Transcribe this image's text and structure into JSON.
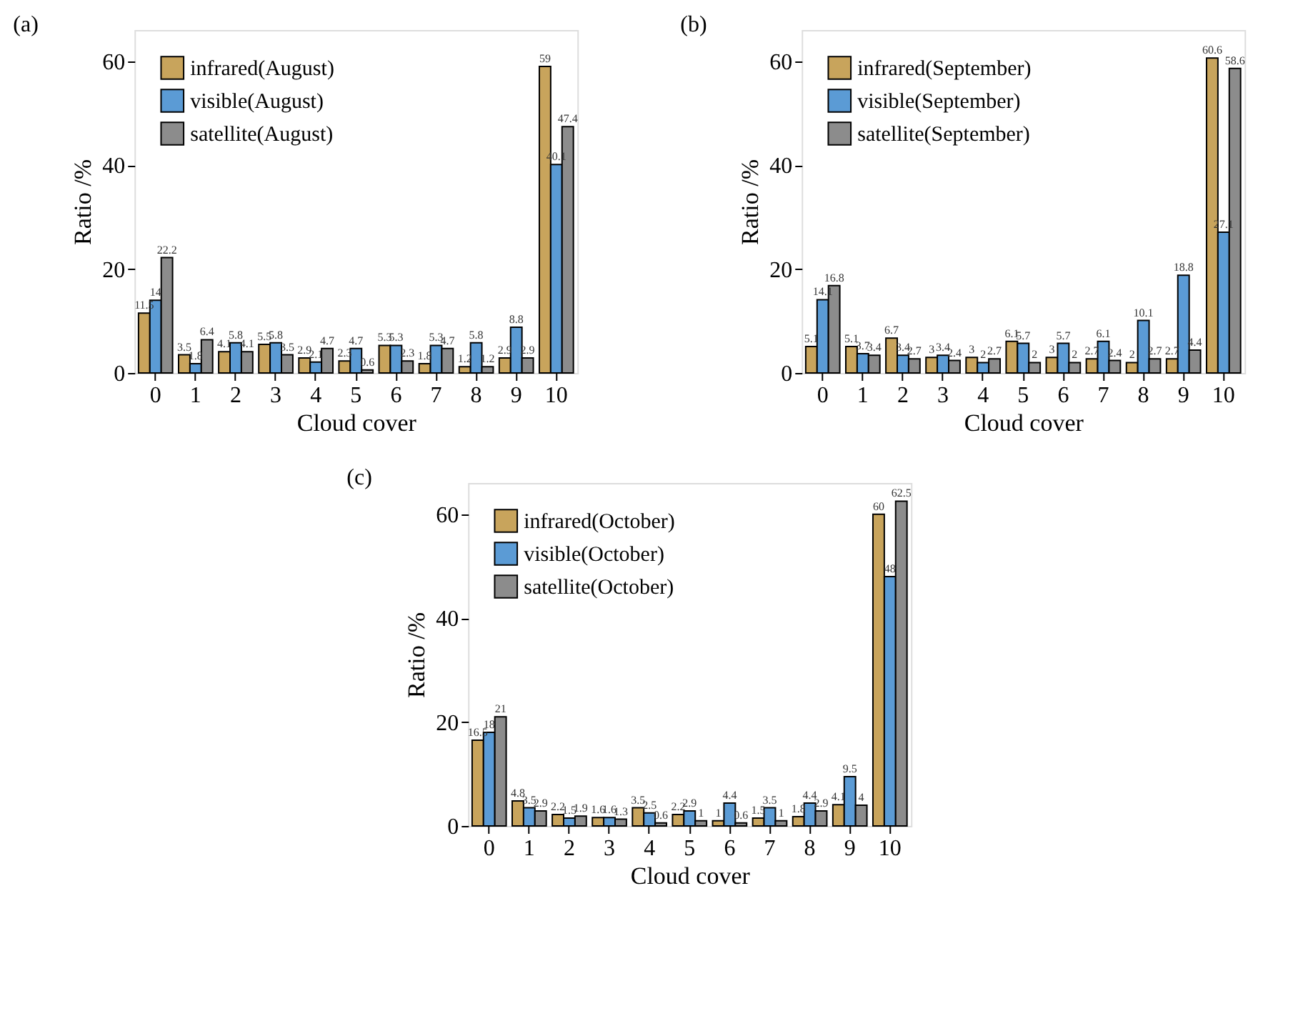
{
  "chart_data": [
    {
      "type": "bar",
      "title": "(a)",
      "xlabel": "Cloud cover",
      "ylabel": "Ratio /%",
      "categories": [
        "0",
        "1",
        "2",
        "3",
        "4",
        "5",
        "6",
        "7",
        "8",
        "9",
        "10"
      ],
      "ylim": [
        0,
        66
      ],
      "yticks": [
        0,
        20,
        40,
        60
      ],
      "grid": false,
      "legend": "top left",
      "data_labels": true,
      "series": [
        {
          "name": "infrared(August)",
          "color": "#c8a45c",
          "values": [
            11.5,
            3.5,
            4.1,
            5.5,
            2.9,
            2.3,
            5.3,
            1.8,
            1.2,
            2.9,
            59
          ]
        },
        {
          "name": "visible(August)",
          "color": "#5b9bd5",
          "values": [
            14,
            1.8,
            5.8,
            5.8,
            2.1,
            4.7,
            5.3,
            5.3,
            5.8,
            8.8,
            40.1
          ]
        },
        {
          "name": "satellite(August)",
          "color": "#8c8c8c",
          "values": [
            22.2,
            6.4,
            4.1,
            3.5,
            4.7,
            0.6,
            2.3,
            4.7,
            1.2,
            2.9,
            47.4
          ]
        }
      ]
    },
    {
      "type": "bar",
      "title": "(b)",
      "xlabel": "Cloud cover",
      "ylabel": "Ratio /%",
      "categories": [
        "0",
        "1",
        "2",
        "3",
        "4",
        "5",
        "6",
        "7",
        "8",
        "9",
        "10"
      ],
      "ylim": [
        0,
        66
      ],
      "yticks": [
        0,
        20,
        40,
        60
      ],
      "grid": false,
      "legend": "top left",
      "data_labels": true,
      "series": [
        {
          "name": "infrared(September)",
          "color": "#c8a45c",
          "values": [
            5.1,
            5.1,
            6.7,
            3,
            3,
            6.1,
            3,
            2.7,
            2,
            2.7,
            60.6
          ]
        },
        {
          "name": "visible(September)",
          "color": "#5b9bd5",
          "values": [
            14.1,
            3.7,
            3.4,
            3.4,
            2,
            5.7,
            5.7,
            6.1,
            10.1,
            18.8,
            27.1
          ]
        },
        {
          "name": "satellite(September)",
          "color": "#8c8c8c",
          "values": [
            16.8,
            3.4,
            2.7,
            2.4,
            2.7,
            2,
            2,
            2.4,
            2.7,
            4.4,
            58.6
          ]
        }
      ]
    },
    {
      "type": "bar",
      "title": "(c)",
      "xlabel": "Cloud cover",
      "ylabel": "Ratio /%",
      "categories": [
        "0",
        "1",
        "2",
        "3",
        "4",
        "5",
        "6",
        "7",
        "8",
        "9",
        "10"
      ],
      "ylim": [
        0,
        66
      ],
      "yticks": [
        0,
        20,
        40,
        60
      ],
      "grid": false,
      "legend": "top left",
      "data_labels": true,
      "series": [
        {
          "name": "infrared(October)",
          "color": "#c8a45c",
          "values": [
            16.5,
            4.8,
            2.2,
            1.6,
            3.5,
            2.2,
            1,
            1.5,
            1.8,
            4.1,
            60
          ]
        },
        {
          "name": "visible(October)",
          "color": "#5b9bd5",
          "values": [
            18,
            3.5,
            1.5,
            1.6,
            2.5,
            2.9,
            4.4,
            3.5,
            4.4,
            9.5,
            48
          ]
        },
        {
          "name": "satellite(October)",
          "color": "#8c8c8c",
          "values": [
            21,
            2.9,
            1.9,
            1.3,
            0.6,
            1,
            0.6,
            1,
            2.9,
            4,
            62.5
          ]
        }
      ]
    }
  ]
}
